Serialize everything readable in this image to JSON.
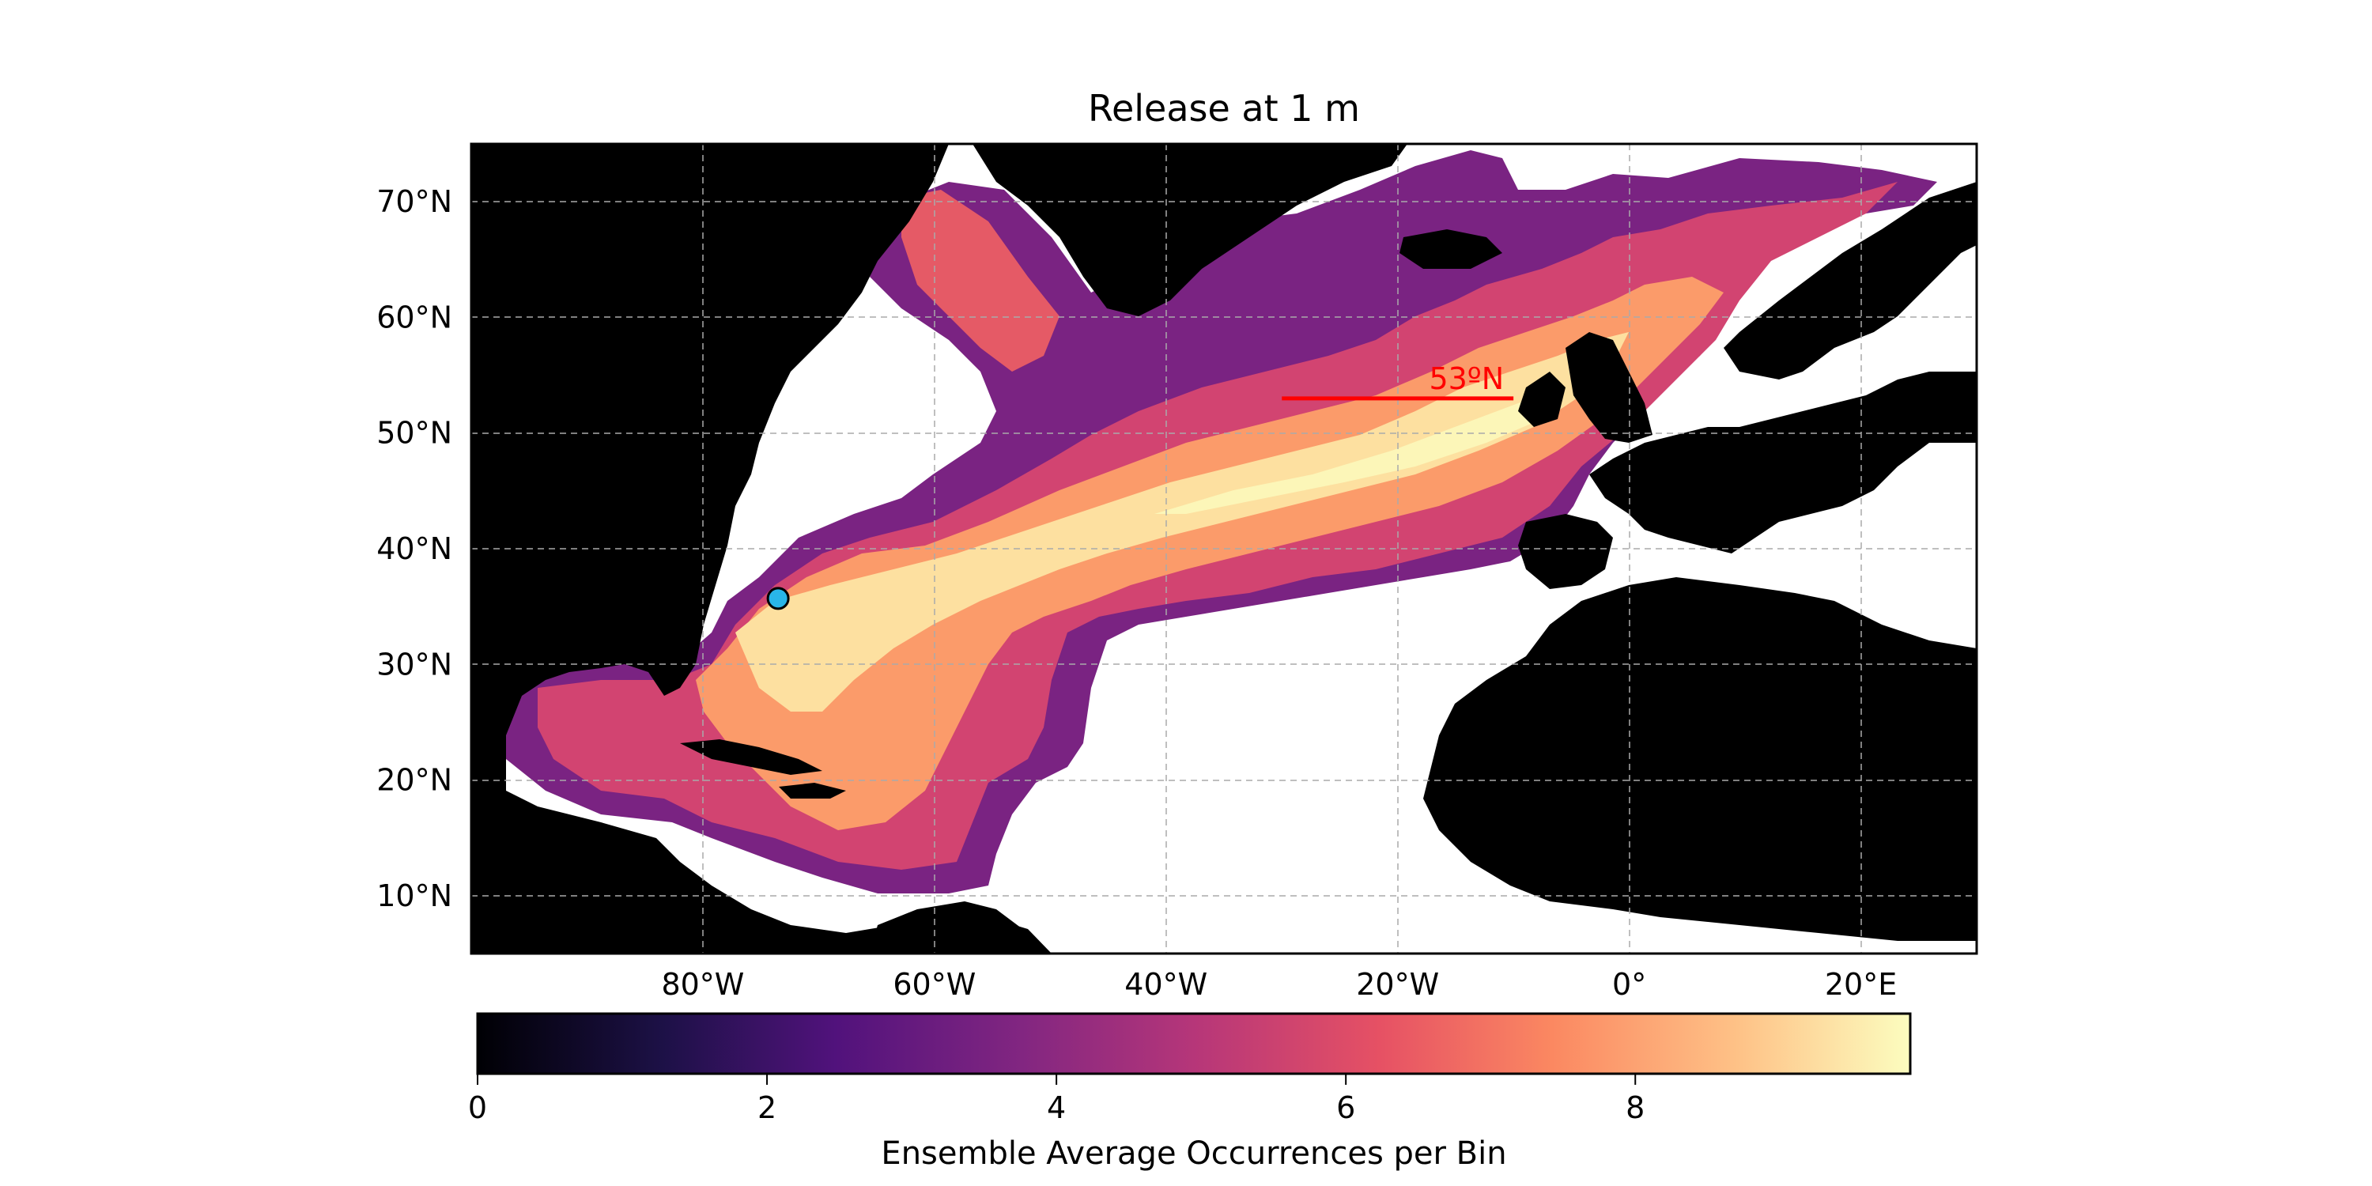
{
  "title": "Release at 1 m",
  "map": {
    "lon_range": [
      -100,
      30
    ],
    "lat_range": [
      5,
      75
    ],
    "x_ticks": [
      {
        "lon": -80,
        "label": "80°W"
      },
      {
        "lon": -60,
        "label": "60°W"
      },
      {
        "lon": -40,
        "label": "40°W"
      },
      {
        "lon": -20,
        "label": "20°W"
      },
      {
        "lon": 0,
        "label": "0°"
      },
      {
        "lon": 20,
        "label": "20°E"
      }
    ],
    "y_ticks": [
      {
        "lat": 10,
        "label": "10°N"
      },
      {
        "lat": 20,
        "label": "20°N"
      },
      {
        "lat": 30,
        "label": "30°N"
      },
      {
        "lat": 40,
        "label": "40°N"
      },
      {
        "lat": 50,
        "label": "50°N"
      },
      {
        "lat": 60,
        "label": "60°N"
      },
      {
        "lat": 70,
        "label": "70°N"
      }
    ],
    "gridlines": true,
    "land_color": "#000000",
    "ocean_color": "#ffffff",
    "release_point": {
      "lon": -73.5,
      "lat": 35.7,
      "color": "#29b6e8"
    },
    "section_line": {
      "label": "53ºN",
      "lat": 53,
      "lon_start": -30,
      "lon_end": -10,
      "color": "#ff0000"
    }
  },
  "colorbar": {
    "label": "Ensemble Average Occurrences per Bin",
    "colormap": "magma",
    "min": 0,
    "max": 9.9,
    "ticks": [
      {
        "value": 0,
        "label": "0"
      },
      {
        "value": 2,
        "label": "2"
      },
      {
        "value": 4,
        "label": "4"
      },
      {
        "value": 6,
        "label": "6"
      },
      {
        "value": 8,
        "label": "8"
      }
    ]
  }
}
